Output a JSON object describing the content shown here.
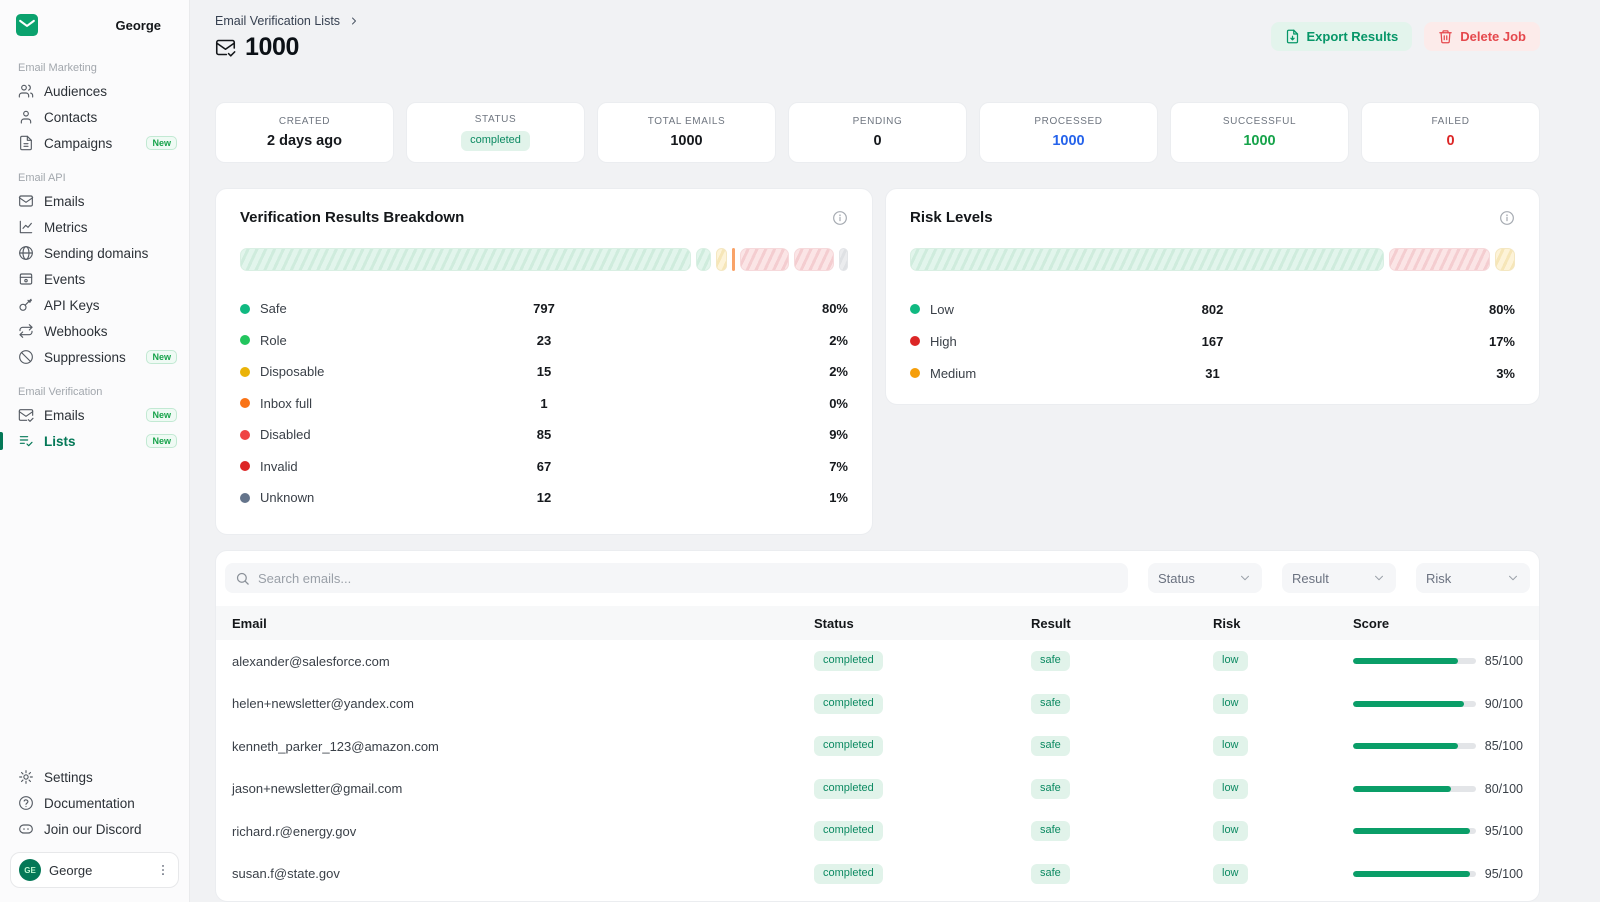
{
  "sidebar": {
    "workspace_name": "George",
    "sections": [
      {
        "label": "Email Marketing",
        "items": [
          {
            "label": "Audiences",
            "icon": "users"
          },
          {
            "label": "Contacts",
            "icon": "user"
          },
          {
            "label": "Campaigns",
            "icon": "file-text",
            "badge": "New"
          }
        ]
      },
      {
        "label": "Email API",
        "items": [
          {
            "label": "Emails",
            "icon": "mail"
          },
          {
            "label": "Metrics",
            "icon": "chart"
          },
          {
            "label": "Sending domains",
            "icon": "globe"
          },
          {
            "label": "Events",
            "icon": "event"
          },
          {
            "label": "API Keys",
            "icon": "key"
          },
          {
            "label": "Webhooks",
            "icon": "webhook"
          },
          {
            "label": "Suppressions",
            "icon": "slash-circle",
            "badge": "New"
          }
        ]
      },
      {
        "label": "Email Verification",
        "items": [
          {
            "label": "Emails",
            "icon": "mail-check",
            "badge": "New"
          },
          {
            "label": "Lists",
            "icon": "list-check",
            "badge": "New",
            "active": true
          }
        ]
      }
    ],
    "footer_items": [
      {
        "label": "Settings",
        "icon": "gear"
      },
      {
        "label": "Documentation",
        "icon": "help-circle"
      },
      {
        "label": "Join our Discord",
        "icon": "discord"
      }
    ],
    "user": {
      "name": "George",
      "initials": "GE"
    }
  },
  "header": {
    "breadcrumb": "Email Verification Lists",
    "title": "1000",
    "export_button": "Export Results",
    "delete_button": "Delete Job"
  },
  "stats": [
    {
      "label": "CREATED",
      "value": "2 days ago"
    },
    {
      "label": "STATUS",
      "value": "completed",
      "style": "badge"
    },
    {
      "label": "TOTAL EMAILS",
      "value": "1000"
    },
    {
      "label": "PENDING",
      "value": "0"
    },
    {
      "label": "PROCESSED",
      "value": "1000",
      "color": "#2563eb"
    },
    {
      "label": "SUCCESSFUL",
      "value": "1000",
      "color": "#16a34a"
    },
    {
      "label": "FAILED",
      "value": "0",
      "color": "#dc2626"
    }
  ],
  "panels": {
    "breakdown": {
      "title": "Verification Results Breakdown",
      "items": [
        {
          "label": "Safe",
          "count": 797,
          "pct": "80%",
          "dot": "#10b981",
          "tone": "green"
        },
        {
          "label": "Role",
          "count": 23,
          "pct": "2%",
          "dot": "#22c55e",
          "tone": "green"
        },
        {
          "label": "Disposable",
          "count": 15,
          "pct": "2%",
          "dot": "#eab308",
          "tone": "yellow"
        },
        {
          "label": "Inbox full",
          "count": 1,
          "pct": "0%",
          "dot": "#f97316",
          "tone": "orange"
        },
        {
          "label": "Disabled",
          "count": 85,
          "pct": "9%",
          "dot": "#ef4444",
          "tone": "red"
        },
        {
          "label": "Invalid",
          "count": 67,
          "pct": "7%",
          "dot": "#dc2626",
          "tone": "red"
        },
        {
          "label": "Unknown",
          "count": 12,
          "pct": "1%",
          "dot": "#64748b",
          "tone": "gray"
        }
      ]
    },
    "risk": {
      "title": "Risk Levels",
      "items": [
        {
          "label": "Low",
          "count": 802,
          "pct": "80%",
          "dot": "#10b981",
          "tone": "green"
        },
        {
          "label": "High",
          "count": 167,
          "pct": "17%",
          "dot": "#dc2626",
          "tone": "red"
        },
        {
          "label": "Medium",
          "count": 31,
          "pct": "3%",
          "dot": "#f59e0b",
          "tone": "yellow"
        }
      ]
    }
  },
  "filters": {
    "search_placeholder": "Search emails...",
    "dropdowns": [
      "Status",
      "Result",
      "Risk"
    ]
  },
  "table": {
    "columns": [
      "Email",
      "Status",
      "Result",
      "Risk",
      "Score"
    ],
    "rows": [
      {
        "email": "alexander@salesforce.com",
        "status": "completed",
        "result": "safe",
        "risk": "low",
        "score": 85,
        "score_label": "85/100"
      },
      {
        "email": "helen+newsletter@yandex.com",
        "status": "completed",
        "result": "safe",
        "risk": "low",
        "score": 90,
        "score_label": "90/100"
      },
      {
        "email": "kenneth_parker_123@amazon.com",
        "status": "completed",
        "result": "safe",
        "risk": "low",
        "score": 85,
        "score_label": "85/100"
      },
      {
        "email": "jason+newsletter@gmail.com",
        "status": "completed",
        "result": "safe",
        "risk": "low",
        "score": 80,
        "score_label": "80/100"
      },
      {
        "email": "richard.r@energy.gov",
        "status": "completed",
        "result": "safe",
        "risk": "low",
        "score": 95,
        "score_label": "95/100"
      },
      {
        "email": "susan.f@state.gov",
        "status": "completed",
        "result": "safe",
        "risk": "low",
        "score": 95,
        "score_label": "95/100"
      }
    ]
  }
}
